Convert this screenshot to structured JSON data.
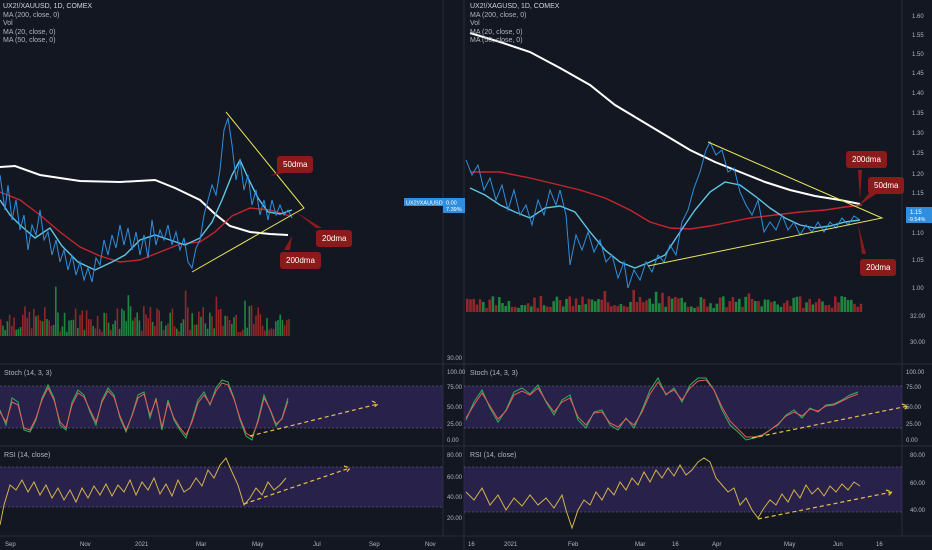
{
  "left_chart": {
    "legend": [
      "UX2!/XAUUSD, 1D, COMEX",
      "MA (200, close, 0)",
      "Vol",
      "MA (20, close, 0)",
      "MA (50, close, 0)"
    ],
    "price_label_symbol": "UX2!/XAUUSD",
    "price_label_value": "0.00",
    "price_label_change": "7.39%",
    "axis_right": [
      "30.00"
    ],
    "stoch_label": "Stoch (14, 3, 3)",
    "stoch_axis": [
      "100.00",
      "75.00",
      "50.00",
      "25.00",
      "0.00"
    ],
    "rsi_label": "RSI (14, close)",
    "rsi_axis": [
      "80.00",
      "60.00",
      "40.00",
      "20.00"
    ],
    "x_ticks": [
      "Sep",
      "Nov",
      "2021",
      "Mar",
      "May",
      "Jul",
      "Sep",
      "Nov"
    ],
    "callouts": [
      "50dma",
      "20dma",
      "200dma"
    ]
  },
  "right_chart": {
    "legend": [
      "UX2!/XAGUSD, 1D, COMEX",
      "MA (200, close, 0)",
      "Vol",
      "MA (20, close, 0)",
      "MA (50, close, 0)"
    ],
    "price_axis": [
      "1.60",
      "1.55",
      "1.50",
      "1.45",
      "1.40",
      "1.35",
      "1.30",
      "1.25",
      "1.20",
      "1.15",
      "1.10",
      "1.05",
      "1.00"
    ],
    "vol_axis": [
      "32.00",
      "30.00"
    ],
    "price_label_value": "1.15",
    "price_label_change": "-9.54%",
    "stoch_label": "Stoch (14, 3, 3)",
    "stoch_axis": [
      "100.00",
      "75.00",
      "50.00",
      "25.00",
      "0.00"
    ],
    "rsi_label": "RSI (14, close)",
    "rsi_axis": [
      "80.00",
      "60.00",
      "40.00"
    ],
    "x_ticks": [
      "16",
      "2021",
      "Feb",
      "Mar",
      "16",
      "Apr",
      "May",
      "Jun",
      "16"
    ],
    "callouts": [
      "200dma",
      "50dma",
      "20dma"
    ]
  },
  "colors": {
    "background": "#131722",
    "price": "#2f8fde",
    "ma20": "#5fc6e0",
    "ma50": "#c4262e",
    "ma200": "#ffffff",
    "trendline": "#e8e55a",
    "stoch_k": "#2fb35a",
    "stoch_d": "#e85b5b",
    "rsi": "#d4b24a",
    "band": "#3a2a6b",
    "vol_up": "#1e9a44",
    "vol_down": "#a82a2a",
    "callout": "#8b1a1a"
  },
  "chart_data": [
    {
      "type": "line",
      "title": "UX2!/XAUUSD, 1D, COMEX",
      "series": [
        {
          "name": "MA (200, close, 0)"
        },
        {
          "name": "MA (20, close, 0)"
        },
        {
          "name": "MA (50, close, 0)"
        }
      ],
      "last_change": "7.39%"
    },
    {
      "type": "line",
      "title": "UX2!/XAGUSD, 1D, COMEX",
      "ylim": [
        0.97,
        1.62
      ],
      "series": [
        {
          "name": "MA (200, close, 0)"
        },
        {
          "name": "MA (20, close, 0)"
        },
        {
          "name": "MA (50, close, 0)"
        }
      ],
      "last_value": 1.15,
      "last_change": "-9.54%"
    }
  ]
}
